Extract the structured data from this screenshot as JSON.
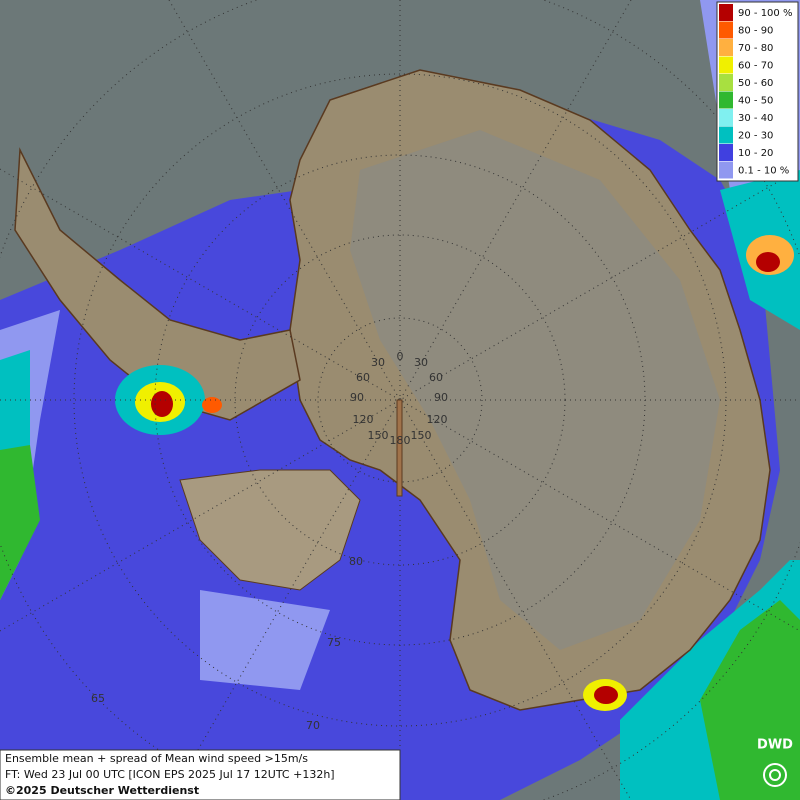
{
  "legend": {
    "items": [
      {
        "label": "90 - 100 %",
        "color": "#b40000"
      },
      {
        "label": "80 - 90",
        "color": "#ff5a00"
      },
      {
        "label": "70 - 80",
        "color": "#ffb040"
      },
      {
        "label": "60 - 70",
        "color": "#f0f000"
      },
      {
        "label": "50 - 60",
        "color": "#a8e040"
      },
      {
        "label": "40 - 50",
        "color": "#30b830"
      },
      {
        "label": "30 - 40",
        "color": "#80f0f0"
      },
      {
        "label": "20 - 30",
        "color": "#00c0c0"
      },
      {
        "label": "10 - 20",
        "color": "#4040e0"
      },
      {
        "label": "0.1 - 10 %",
        "color": "#9098f0"
      }
    ]
  },
  "graticule_labels": [
    "0",
    "30",
    "30",
    "60",
    "60",
    "90",
    "90",
    "120",
    "120",
    "150",
    "150",
    "180",
    "80",
    "75",
    "70",
    "65"
  ],
  "info": {
    "lines": [
      "Ensemble mean + spread of Mean wind speed >15m/s",
      "FT: Wed 23 Jul 00 UTC [ICON EPS 2025 Jul 17 12UTC +132h]",
      "©2025 Deutscher Wetterdienst"
    ]
  },
  "logo": "DWD"
}
